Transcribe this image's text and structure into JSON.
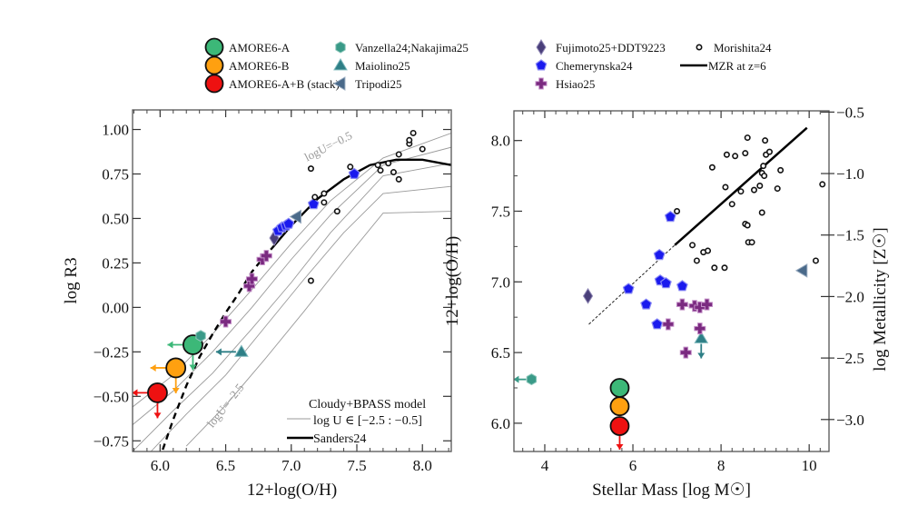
{
  "legend": {
    "entries": [
      {
        "key": "amore_a",
        "label": "AMORE6-A",
        "marker": "circle-large",
        "color": "#3cb878",
        "edge": "#111111"
      },
      {
        "key": "amore_b",
        "label": "AMORE6-B",
        "marker": "circle-large",
        "color": "#ffa010",
        "edge": "#111111"
      },
      {
        "key": "amore_stack",
        "label": "AMORE6-A+B (stack)",
        "marker": "circle-large",
        "color": "#ee1111",
        "edge": "#111111"
      },
      {
        "key": "vanzella",
        "label": "Vanzella24;Nakajima25",
        "marker": "hexagon",
        "color": "#3a9a88"
      },
      {
        "key": "maiolino",
        "label": "Maiolino25",
        "marker": "triangle-up",
        "color": "#2e7f86"
      },
      {
        "key": "tripodi",
        "label": "Tripodi25",
        "marker": "triangle-left",
        "color": "#4a6a8a"
      },
      {
        "key": "fujimoto",
        "label": "Fujimoto25+DDT9223",
        "marker": "diamond",
        "color": "#4a3f7a"
      },
      {
        "key": "chemerynska",
        "label": "Chemerynska24",
        "marker": "pentagon",
        "color": "#1a1aee"
      },
      {
        "key": "hsiao",
        "label": "Hsiao25",
        "marker": "plus",
        "color": "#7a2a80"
      },
      {
        "key": "morishita",
        "label": "Morishita24",
        "marker": "open-circle-small",
        "color": "#111111"
      },
      {
        "key": "mzr",
        "label": "MZR at z=6",
        "marker": "line",
        "color": "#000000"
      }
    ]
  },
  "chart_data": [
    {
      "type": "scatter",
      "title": "",
      "xlabel": "12+log(O/H)",
      "ylabel": "log R3",
      "xlim": [
        5.79,
        8.22
      ],
      "ylim": [
        -0.81,
        1.11
      ],
      "xticks": [
        6.0,
        6.5,
        7.0,
        7.5,
        8.0
      ],
      "xtick_labels": [
        "6.0",
        "6.5",
        "7.0",
        "7.5",
        "8.0"
      ],
      "yticks": [
        1.0,
        0.75,
        0.5,
        0.25,
        0.0,
        -0.25,
        -0.5,
        -0.75
      ],
      "ytick_labels": [
        "1.00",
        "0.75",
        "0.50",
        "0.25",
        "0.00",
        "−0.25",
        "−0.50",
        "−0.75"
      ],
      "grid": false,
      "annotations": [
        {
          "text": "logU=−0.5",
          "x": 7.12,
          "y": 0.82,
          "rotation": -27
        },
        {
          "text": "logU=−2.5",
          "x": 6.4,
          "y": -0.68,
          "rotation": -52
        }
      ],
      "inset_legend": {
        "model_title": "Cloudy+BPASS model",
        "model_range": "log U ∈ [−2.5 : −0.5]",
        "sanders_label": "Sanders24",
        "placement": "bottom-right"
      },
      "model_grid": [
        {
          "logU": -0.5,
          "x": [
            5.79,
            6.1,
            6.4,
            6.7,
            7.0,
            7.3,
            7.7,
            8.22
          ],
          "y": [
            -0.56,
            -0.38,
            -0.15,
            0.1,
            0.36,
            0.6,
            0.84,
            0.98
          ]
        },
        {
          "logU": -1.0,
          "x": [
            5.79,
            6.1,
            6.4,
            6.7,
            7.0,
            7.3,
            7.7,
            8.22
          ],
          "y": [
            -0.66,
            -0.47,
            -0.25,
            0.0,
            0.27,
            0.52,
            0.8,
            0.9
          ]
        },
        {
          "logU": -1.5,
          "x": [
            5.79,
            6.1,
            6.4,
            6.7,
            7.0,
            7.3,
            7.7,
            8.22
          ],
          "y": [
            -0.81,
            -0.58,
            -0.37,
            -0.12,
            0.14,
            0.42,
            0.74,
            0.81
          ]
        },
        {
          "logU": -2.0,
          "x": [
            5.93,
            6.2,
            6.5,
            6.8,
            7.1,
            7.4,
            7.7,
            8.22
          ],
          "y": [
            -0.81,
            -0.6,
            -0.38,
            -0.11,
            0.16,
            0.42,
            0.64,
            0.68
          ]
        },
        {
          "logU": -2.5,
          "x": [
            6.2,
            6.5,
            6.8,
            7.1,
            7.4,
            7.7,
            8.22
          ],
          "y": [
            -0.78,
            -0.55,
            -0.29,
            -0.02,
            0.26,
            0.53,
            0.54
          ]
        }
      ],
      "sanders24_curve": {
        "dashed": {
          "x": [
            6.02,
            6.1,
            6.2,
            6.3,
            6.4,
            6.5,
            6.6,
            6.7,
            6.8,
            6.85
          ],
          "y": [
            -0.8,
            -0.63,
            -0.44,
            -0.28,
            -0.15,
            -0.03,
            0.08,
            0.2,
            0.29,
            0.33
          ]
        },
        "solid": {
          "x": [
            6.85,
            7.0,
            7.2,
            7.4,
            7.6,
            7.8,
            8.0,
            8.22
          ],
          "y": [
            0.33,
            0.46,
            0.61,
            0.72,
            0.8,
            0.83,
            0.83,
            0.8
          ]
        }
      },
      "series": [
        {
          "name": "AMORE6-A",
          "marker": "amore_a",
          "points": [
            {
              "x": 6.25,
              "y": -0.21
            }
          ],
          "upper_limit_x": true,
          "upper_limit_y": true
        },
        {
          "name": "AMORE6-B",
          "marker": "amore_b",
          "points": [
            {
              "x": 6.12,
              "y": -0.34
            }
          ],
          "upper_limit_x": true,
          "upper_limit_y": true
        },
        {
          "name": "AMORE6-A+B (stack)",
          "marker": "amore_stack",
          "points": [
            {
              "x": 5.98,
              "y": -0.48
            }
          ],
          "upper_limit_x": true,
          "upper_limit_y": true
        },
        {
          "name": "Vanzella24;Nakajima25",
          "marker": "vanzella",
          "points": [
            {
              "x": 6.31,
              "y": -0.16
            }
          ]
        },
        {
          "name": "Maiolino25",
          "marker": "maiolino",
          "points": [
            {
              "x": 6.62,
              "y": -0.25
            }
          ],
          "upper_limit_x": true
        },
        {
          "name": "Tripodi25",
          "marker": "tripodi",
          "points": [
            {
              "x": 7.04,
              "y": 0.51
            }
          ]
        },
        {
          "name": "Fujimoto25+DDT9223",
          "marker": "fujimoto",
          "points": [
            {
              "x": 6.87,
              "y": 0.39
            }
          ]
        },
        {
          "name": "Chemerynska24",
          "marker": "chemerynska",
          "points": [
            {
              "x": 6.9,
              "y": 0.43
            },
            {
              "x": 6.93,
              "y": 0.45
            },
            {
              "x": 6.96,
              "y": 0.46
            },
            {
              "x": 6.98,
              "y": 0.47
            },
            {
              "x": 7.17,
              "y": 0.58
            },
            {
              "x": 7.48,
              "y": 0.75
            }
          ]
        },
        {
          "name": "Hsiao25",
          "marker": "hsiao",
          "points": [
            {
              "x": 6.5,
              "y": -0.08
            },
            {
              "x": 6.68,
              "y": 0.12
            },
            {
              "x": 6.7,
              "y": 0.16
            },
            {
              "x": 6.78,
              "y": 0.27
            },
            {
              "x": 6.81,
              "y": 0.29
            }
          ]
        },
        {
          "name": "Morishita24",
          "marker": "morishita",
          "points": [
            {
              "x": 7.15,
              "y": 0.78
            },
            {
              "x": 7.15,
              "y": 0.15
            },
            {
              "x": 7.18,
              "y": 0.62
            },
            {
              "x": 7.25,
              "y": 0.64
            },
            {
              "x": 7.25,
              "y": 0.59
            },
            {
              "x": 7.35,
              "y": 0.54
            },
            {
              "x": 7.45,
              "y": 0.79
            },
            {
              "x": 7.66,
              "y": 0.8
            },
            {
              "x": 7.68,
              "y": 0.77
            },
            {
              "x": 7.74,
              "y": 0.81
            },
            {
              "x": 7.78,
              "y": 0.76
            },
            {
              "x": 7.82,
              "y": 0.72
            },
            {
              "x": 7.82,
              "y": 0.86
            },
            {
              "x": 7.9,
              "y": 0.92
            },
            {
              "x": 7.9,
              "y": 0.94
            },
            {
              "x": 7.93,
              "y": 0.98
            },
            {
              "x": 8.0,
              "y": 0.89
            }
          ]
        }
      ]
    },
    {
      "type": "scatter",
      "title": "",
      "xlabel": "Stellar Mass [log M☉]",
      "ylabel": "12+log(O/H)",
      "ylabel_right": "log Metallicity [Z☉]",
      "xlim": [
        3.3,
        10.45
      ],
      "ylim": [
        5.8,
        8.21
      ],
      "xticks": [
        4,
        6,
        8,
        10
      ],
      "xtick_labels": [
        "4",
        "6",
        "8",
        "10"
      ],
      "yticks": [
        6.0,
        6.5,
        7.0,
        7.5,
        8.0
      ],
      "ytick_labels": [
        "6.0",
        "6.5",
        "7.0",
        "7.5",
        "8.0"
      ],
      "yticks_right": [
        -0.5,
        -1.0,
        -1.5,
        -2.0,
        -2.5,
        -3.0
      ],
      "ytick_labels_right": [
        "−0.5",
        "−1.0",
        "−1.5",
        "−2.0",
        "−2.5",
        "−3.0"
      ],
      "ylim_right": [
        -3.26,
        -0.49
      ],
      "grid": false,
      "mzr_line": {
        "dashed": {
          "x": [
            5.0,
            6.95
          ],
          "y": [
            6.7,
            7.26
          ]
        },
        "solid": {
          "x": [
            6.95,
            9.95
          ],
          "y": [
            7.26,
            8.09
          ]
        }
      },
      "series": [
        {
          "name": "AMORE6-A",
          "marker": "amore_a",
          "points": [
            {
              "x": 5.7,
              "y": 6.25
            }
          ]
        },
        {
          "name": "AMORE6-B",
          "marker": "amore_b",
          "points": [
            {
              "x": 5.7,
              "y": 6.12
            }
          ]
        },
        {
          "name": "AMORE6-A+B (stack)",
          "marker": "amore_stack",
          "points": [
            {
              "x": 5.7,
              "y": 5.98
            }
          ],
          "upper_limit_y": true
        },
        {
          "name": "Vanzella24;Nakajima25",
          "marker": "vanzella",
          "points": [
            {
              "x": 3.7,
              "y": 6.31
            }
          ],
          "upper_limit_x": true
        },
        {
          "name": "Maiolino25",
          "marker": "maiolino",
          "points": [
            {
              "x": 7.55,
              "y": 6.6
            }
          ],
          "upper_limit_y": true
        },
        {
          "name": "Tripodi25",
          "marker": "tripodi",
          "points": [
            {
              "x": 9.85,
              "y": 7.08
            }
          ]
        },
        {
          "name": "Fujimoto25+DDT9223",
          "marker": "fujimoto",
          "points": [
            {
              "x": 4.98,
              "y": 6.9
            }
          ]
        },
        {
          "name": "Chemerynska24",
          "marker": "chemerynska",
          "points": [
            {
              "x": 5.9,
              "y": 6.95
            },
            {
              "x": 6.3,
              "y": 6.84
            },
            {
              "x": 6.55,
              "y": 6.7
            },
            {
              "x": 6.6,
              "y": 7.19
            },
            {
              "x": 6.62,
              "y": 7.01
            },
            {
              "x": 6.75,
              "y": 6.99
            },
            {
              "x": 6.85,
              "y": 7.46
            },
            {
              "x": 7.12,
              "y": 6.97
            }
          ]
        },
        {
          "name": "Hsiao25",
          "marker": "hsiao",
          "points": [
            {
              "x": 6.8,
              "y": 6.7
            },
            {
              "x": 7.12,
              "y": 6.84
            },
            {
              "x": 7.2,
              "y": 6.5
            },
            {
              "x": 7.4,
              "y": 6.83
            },
            {
              "x": 7.52,
              "y": 6.82
            },
            {
              "x": 7.52,
              "y": 6.67
            },
            {
              "x": 7.68,
              "y": 6.84
            }
          ]
        },
        {
          "name": "Morishita24",
          "marker": "morishita",
          "points": [
            {
              "x": 7.35,
              "y": 7.26
            },
            {
              "x": 7.6,
              "y": 7.21
            },
            {
              "x": 7.7,
              "y": 7.22
            },
            {
              "x": 7.45,
              "y": 7.15
            },
            {
              "x": 7.85,
              "y": 7.1
            },
            {
              "x": 8.08,
              "y": 7.1
            },
            {
              "x": 7.0,
              "y": 7.5
            },
            {
              "x": 7.8,
              "y": 7.81
            },
            {
              "x": 8.1,
              "y": 7.67
            },
            {
              "x": 8.25,
              "y": 7.55
            },
            {
              "x": 8.45,
              "y": 7.64
            },
            {
              "x": 8.55,
              "y": 7.41
            },
            {
              "x": 8.6,
              "y": 7.4
            },
            {
              "x": 8.62,
              "y": 7.28
            },
            {
              "x": 8.7,
              "y": 7.28
            },
            {
              "x": 8.75,
              "y": 7.65
            },
            {
              "x": 8.88,
              "y": 7.68
            },
            {
              "x": 8.93,
              "y": 7.49
            },
            {
              "x": 8.93,
              "y": 7.77
            },
            {
              "x": 8.96,
              "y": 7.82
            },
            {
              "x": 8.98,
              "y": 7.75
            },
            {
              "x": 9.02,
              "y": 7.9
            },
            {
              "x": 9.0,
              "y": 8.0
            },
            {
              "x": 9.1,
              "y": 7.92
            },
            {
              "x": 9.35,
              "y": 7.79
            },
            {
              "x": 9.28,
              "y": 7.66
            },
            {
              "x": 8.13,
              "y": 7.9
            },
            {
              "x": 8.32,
              "y": 7.89
            },
            {
              "x": 8.55,
              "y": 7.91
            },
            {
              "x": 8.6,
              "y": 8.02
            },
            {
              "x": 10.15,
              "y": 7.15
            },
            {
              "x": 10.3,
              "y": 7.69
            }
          ]
        },
        {
          "name": "MZR at z=6",
          "marker": "mzr",
          "points": []
        }
      ]
    }
  ]
}
